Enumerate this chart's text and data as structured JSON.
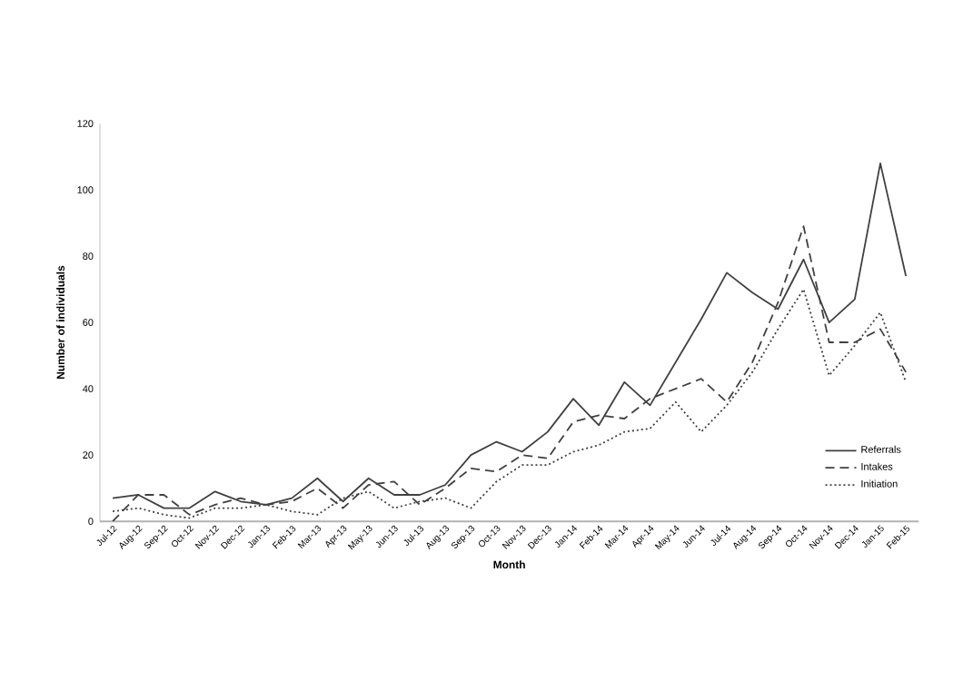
{
  "chart_data": {
    "type": "line",
    "xlabel": "Month",
    "ylabel": "Number of individuals",
    "categories": [
      "Jul-12",
      "Aug-12",
      "Sep-12",
      "Oct-12",
      "Nov-12",
      "Dec-12",
      "Jan-13",
      "Feb-13",
      "Mar-13",
      "Apr-13",
      "May-13",
      "Jun-13",
      "Jul-13",
      "Aug-13",
      "Sep-13",
      "Oct-13",
      "Nov-13",
      "Dec-13",
      "Jan-14",
      "Feb-14",
      "Mar-14",
      "Apr-14",
      "May-14",
      "Jun-14",
      "Jul-14",
      "Aug-14",
      "Sep-14",
      "Oct-14",
      "Nov-14",
      "Dec-14",
      "Jan-15",
      "Feb-15"
    ],
    "series": [
      {
        "name": "Referrals",
        "color": "#404040",
        "line_style": "solid",
        "values": [
          7,
          8,
          4,
          4,
          9,
          6,
          5,
          7,
          13,
          6,
          13,
          8,
          8,
          11,
          20,
          24,
          21,
          27,
          37,
          29,
          42,
          35,
          48,
          61,
          75,
          69,
          64,
          79,
          60,
          67,
          108,
          74
        ]
      },
      {
        "name": "Intakes",
        "color": "#404040",
        "line_style": "dashed",
        "values": [
          0,
          8,
          8,
          2,
          5,
          7,
          5,
          6,
          10,
          4,
          11,
          12,
          5,
          10,
          16,
          15,
          20,
          19,
          30,
          32,
          31,
          37,
          40,
          43,
          36,
          48,
          66,
          89,
          54,
          54,
          58,
          45
        ]
      },
      {
        "name": "Initiation",
        "color": "#404040",
        "line_style": "dotted",
        "values": [
          3,
          4,
          2,
          1,
          4,
          4,
          5,
          3,
          2,
          7,
          9,
          4,
          6,
          7,
          4,
          12,
          17,
          17,
          21,
          23,
          27,
          28,
          36,
          27,
          35,
          45,
          58,
          70,
          44,
          53,
          63,
          42
        ]
      }
    ],
    "ylim": [
      0,
      120
    ],
    "yticks": [
      0,
      20,
      40,
      60,
      80,
      100,
      120
    ],
    "grid": false,
    "legend": "right",
    "marker": "none"
  }
}
